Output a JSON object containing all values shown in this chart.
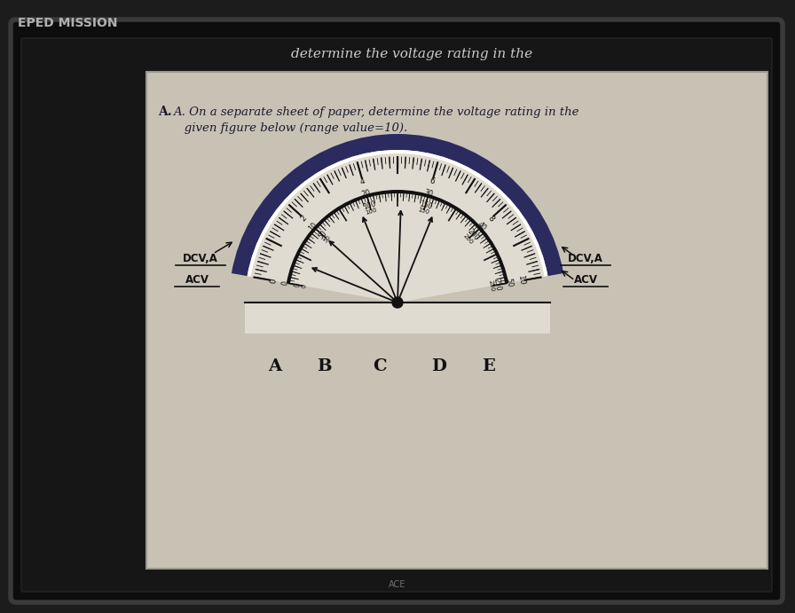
{
  "bg_outer": "#1c1c1c",
  "bg_screen": "#111111",
  "paper_color": "#d4cfc5",
  "meter_face_color": "#ddd8cc",
  "arc_dark_color": "#2b2b60",
  "arc_white_color": "#ffffff",
  "text_color": "#1a1a2e",
  "needle_color": "#111111",
  "title_line1": "determine the voltage rating in the",
  "title_line2": "A. On a separate sheet of paper, determine the voltage rating in the",
  "title_line3": "   given figure below (range value=10).",
  "needle_angles_deg": [
    158,
    138,
    112,
    88,
    68
  ],
  "needle_labels": [
    "A",
    "B",
    "C",
    "D",
    "E"
  ],
  "left_label1": "DCV,A",
  "left_label2": "ACV",
  "right_label1": "DCV,A",
  "right_label2": "ACV",
  "eped_text": "EPED MISSION",
  "ace_text": "ACE"
}
